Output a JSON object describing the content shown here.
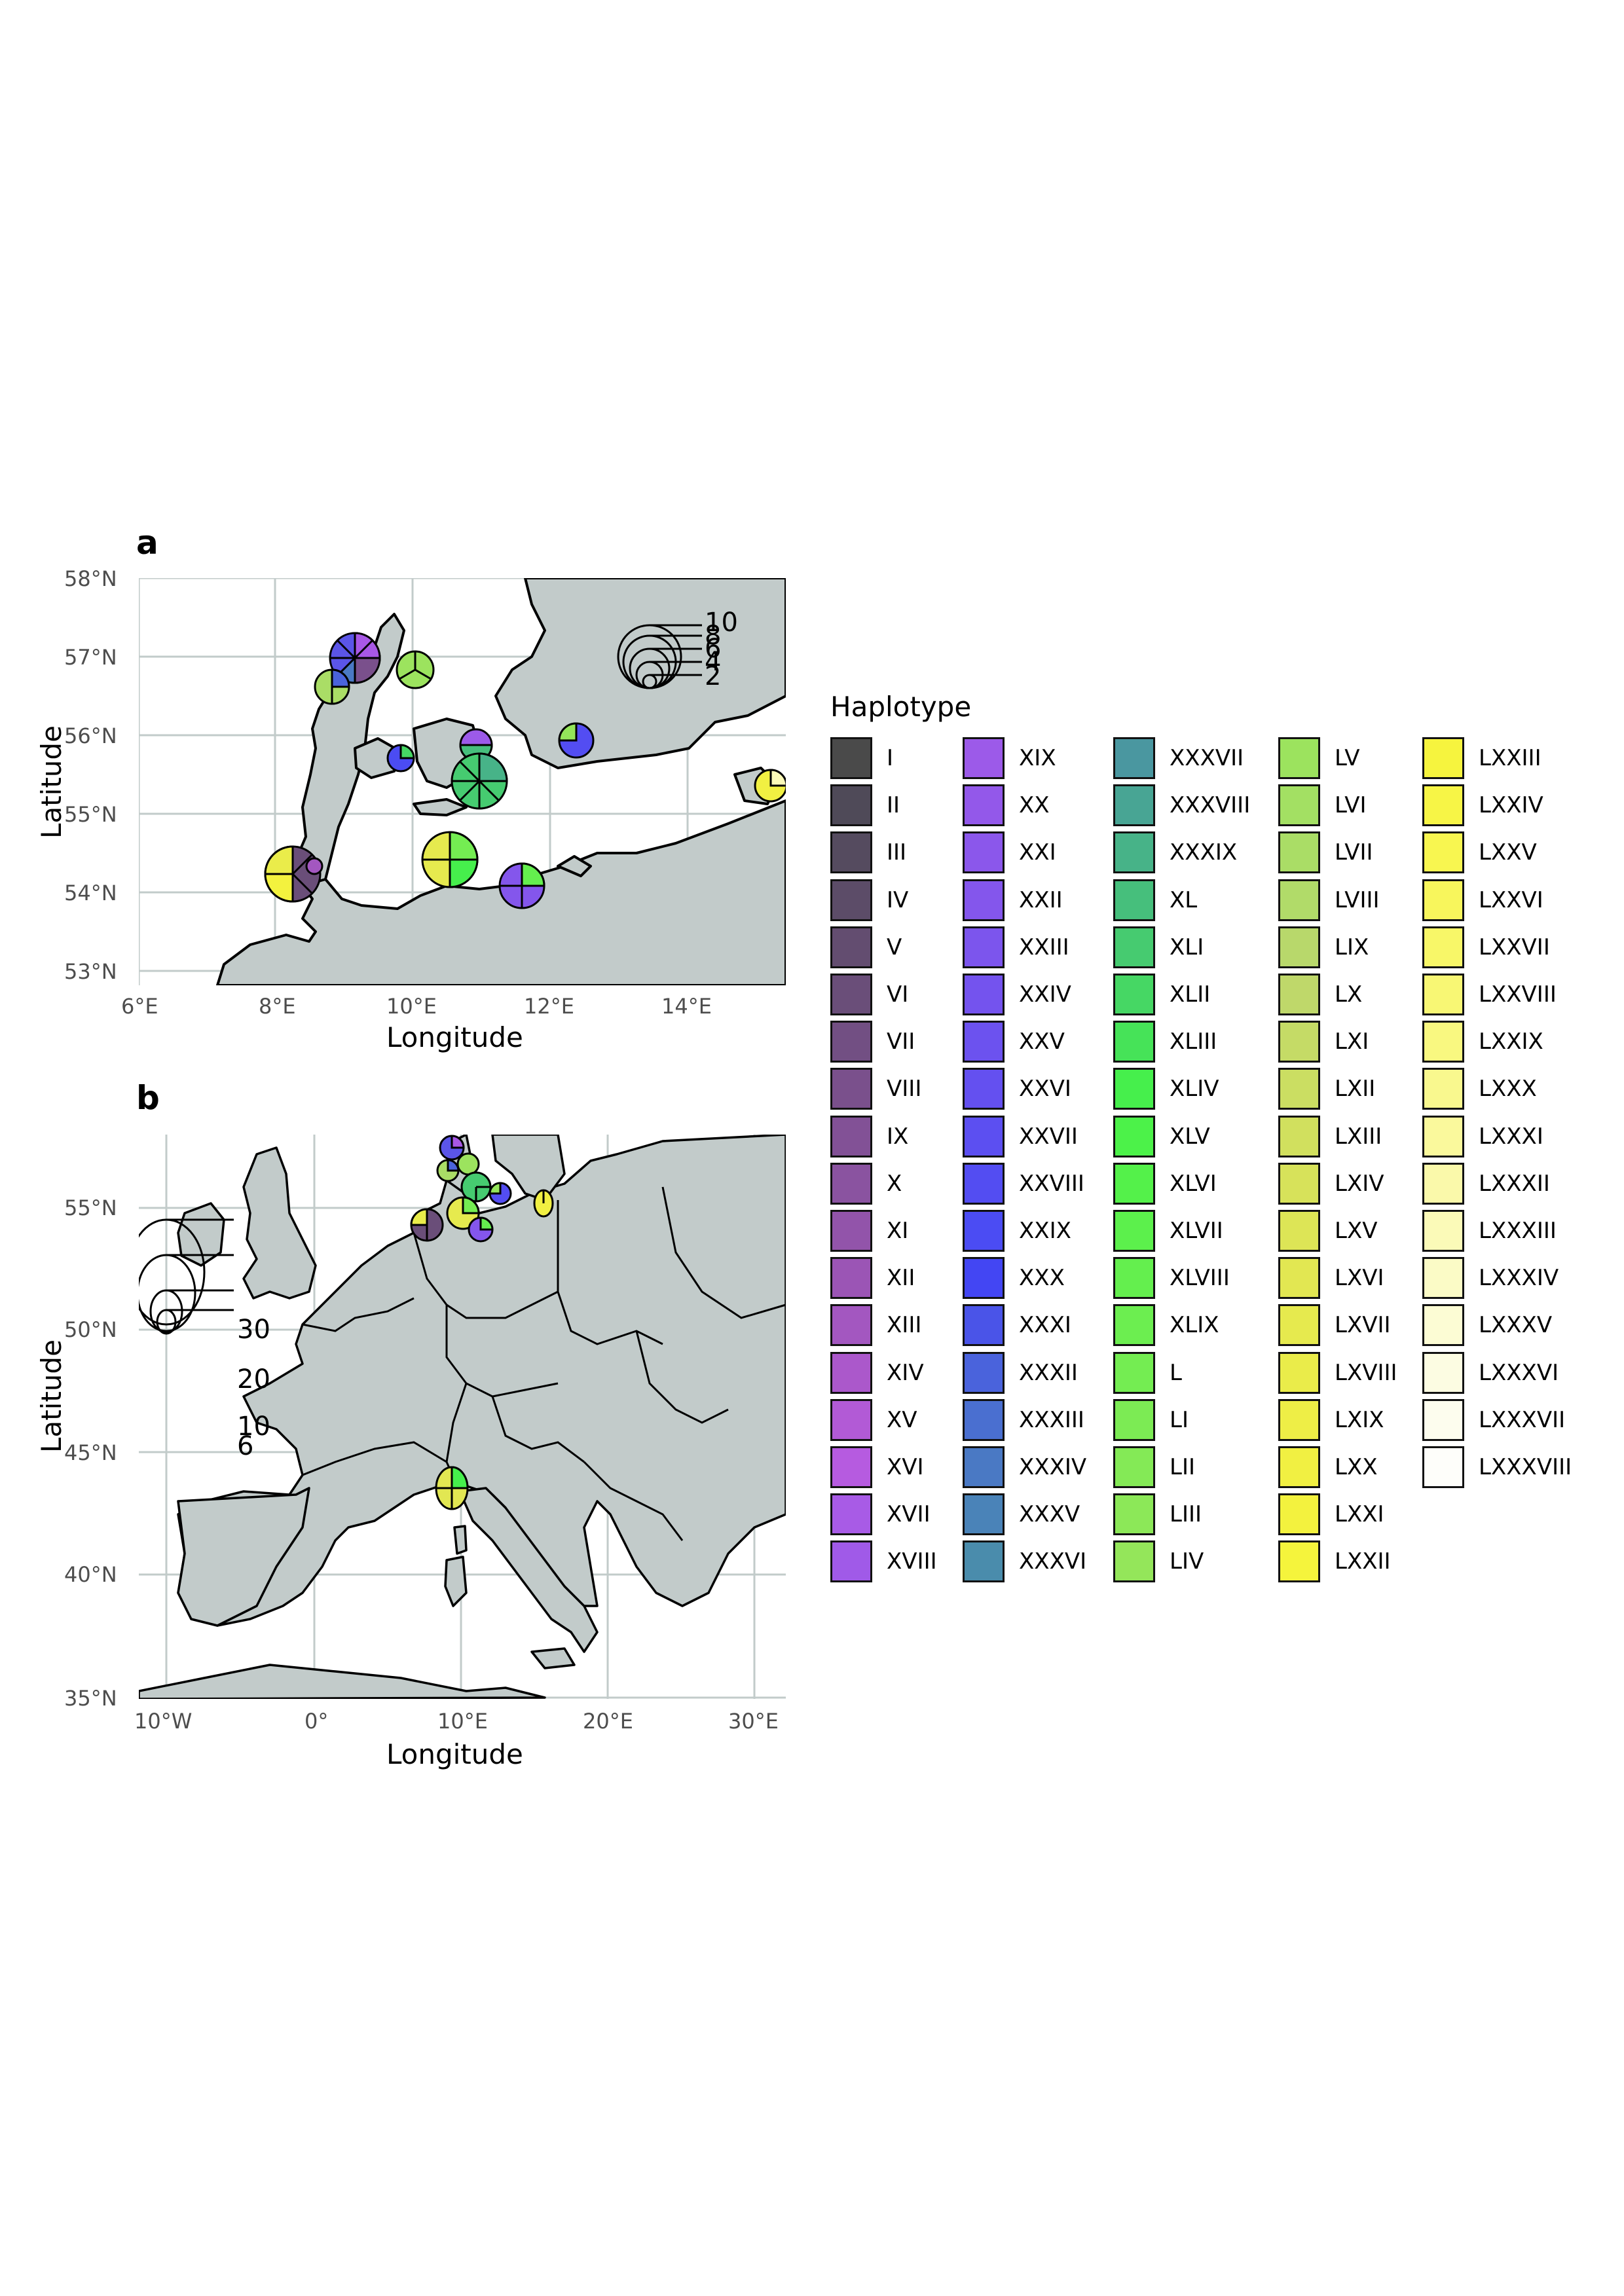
{
  "panels": {
    "a": {
      "letter": "a",
      "x_ticks": [
        "6°E",
        "8°E",
        "10°E",
        "12°E",
        "14°E"
      ],
      "y_ticks": [
        "58°N",
        "57°N",
        "56°N",
        "55°N",
        "54°N",
        "53°N"
      ],
      "xlabel": "Longitude",
      "ylabel": "Latitude",
      "size_legend": [
        "10",
        "8",
        "6",
        "4",
        "2"
      ]
    },
    "b": {
      "letter": "b",
      "x_ticks": [
        "10°W",
        "0°",
        "10°E",
        "20°E",
        "30°E"
      ],
      "y_ticks": [
        "55°N",
        "50°N",
        "45°N",
        "40°N",
        "35°N"
      ],
      "xlabel": "Longitude",
      "ylabel": "Latitude",
      "size_legend": [
        "30",
        "20",
        "10",
        "6"
      ]
    }
  },
  "legend": {
    "title": "Haplotype",
    "items": [
      {
        "label": "I",
        "color": "#4a4a4a"
      },
      {
        "label": "II",
        "color": "#4f4a58"
      },
      {
        "label": "III",
        "color": "#554b5f"
      },
      {
        "label": "IV",
        "color": "#5c4c68"
      },
      {
        "label": "V",
        "color": "#634d70"
      },
      {
        "label": "VI",
        "color": "#6a4e79"
      },
      {
        "label": "VII",
        "color": "#724f83"
      },
      {
        "label": "VIII",
        "color": "#7a508c"
      },
      {
        "label": "IX",
        "color": "#825196"
      },
      {
        "label": "X",
        "color": "#8a53a0"
      },
      {
        "label": "XI",
        "color": "#9254aa"
      },
      {
        "label": "XII",
        "color": "#9b55b5"
      },
      {
        "label": "XIII",
        "color": "#a357c0"
      },
      {
        "label": "XIV",
        "color": "#ab58cb"
      },
      {
        "label": "XV",
        "color": "#b25ad6"
      },
      {
        "label": "XVI",
        "color": "#b65be0"
      },
      {
        "label": "XVII",
        "color": "#a85be6"
      },
      {
        "label": "XVIII",
        "color": "#a05ae8"
      },
      {
        "label": "XIX",
        "color": "#9c5ae9"
      },
      {
        "label": "XX",
        "color": "#9358ea"
      },
      {
        "label": "XXI",
        "color": "#8b57eb"
      },
      {
        "label": "XXII",
        "color": "#8456ec"
      },
      {
        "label": "XXIII",
        "color": "#7c55ed"
      },
      {
        "label": "XXIV",
        "color": "#7453ee"
      },
      {
        "label": "XXV",
        "color": "#6c52ef"
      },
      {
        "label": "XXVI",
        "color": "#6450f0"
      },
      {
        "label": "XXVII",
        "color": "#5c4ff1"
      },
      {
        "label": "XXVIII",
        "color": "#534df2"
      },
      {
        "label": "XXIX",
        "color": "#4b4cf3"
      },
      {
        "label": "XXX",
        "color": "#4346f3"
      },
      {
        "label": "XXXI",
        "color": "#4a54e8"
      },
      {
        "label": "XXXII",
        "color": "#4a63dc"
      },
      {
        "label": "XXXIII",
        "color": "#4a6fd0"
      },
      {
        "label": "XXXIV",
        "color": "#4a79c4"
      },
      {
        "label": "XXXV",
        "color": "#4a83b8"
      },
      {
        "label": "XXXVI",
        "color": "#4a8cac"
      },
      {
        "label": "XXXVII",
        "color": "#4a97a0"
      },
      {
        "label": "XXXVIII",
        "color": "#48a594"
      },
      {
        "label": "XXXIX",
        "color": "#47b388"
      },
      {
        "label": "XL",
        "color": "#46bf7c"
      },
      {
        "label": "XLI",
        "color": "#46cb70"
      },
      {
        "label": "XLII",
        "color": "#46d764"
      },
      {
        "label": "XLIII",
        "color": "#46e358"
      },
      {
        "label": "XLIV",
        "color": "#46ef4c"
      },
      {
        "label": "XLV",
        "color": "#4cf249"
      },
      {
        "label": "XLVI",
        "color": "#54f14a"
      },
      {
        "label": "XLVII",
        "color": "#5cf04c"
      },
      {
        "label": "XLVIII",
        "color": "#64ef4e"
      },
      {
        "label": "XLIX",
        "color": "#6cee50"
      },
      {
        "label": "L",
        "color": "#74ed52"
      },
      {
        "label": "LI",
        "color": "#7ceb54"
      },
      {
        "label": "LII",
        "color": "#84ea56"
      },
      {
        "label": "LIII",
        "color": "#8ce858"
      },
      {
        "label": "LIV",
        "color": "#94e65a"
      },
      {
        "label": "LV",
        "color": "#9ce35e"
      },
      {
        "label": "LVI",
        "color": "#a3e063"
      },
      {
        "label": "LVII",
        "color": "#aadd66"
      },
      {
        "label": "LVIII",
        "color": "#b1db69"
      },
      {
        "label": "LIX",
        "color": "#b8d86b"
      },
      {
        "label": "LX",
        "color": "#bfd86a"
      },
      {
        "label": "LXI",
        "color": "#c5db66"
      },
      {
        "label": "LXII",
        "color": "#cbde62"
      },
      {
        "label": "LXIII",
        "color": "#d1e05e"
      },
      {
        "label": "LXIV",
        "color": "#d7e25a"
      },
      {
        "label": "LXV",
        "color": "#dde556"
      },
      {
        "label": "LXVI",
        "color": "#e2e752"
      },
      {
        "label": "LXVII",
        "color": "#e6ea4e"
      },
      {
        "label": "LXVIII",
        "color": "#eaec4a"
      },
      {
        "label": "LXIX",
        "color": "#eeee46"
      },
      {
        "label": "LXX",
        "color": "#f1f042"
      },
      {
        "label": "LXXI",
        "color": "#f3f23e"
      },
      {
        "label": "LXXII",
        "color": "#f5f43c"
      },
      {
        "label": "LXXIII",
        "color": "#f6f43e"
      },
      {
        "label": "LXXIV",
        "color": "#f7f546"
      },
      {
        "label": "LXXV",
        "color": "#f8f650"
      },
      {
        "label": "LXXVI",
        "color": "#f8f65c"
      },
      {
        "label": "LXXVII",
        "color": "#f8f768"
      },
      {
        "label": "LXXVIII",
        "color": "#f8f774"
      },
      {
        "label": "LXXIX",
        "color": "#f9f880"
      },
      {
        "label": "LXXX",
        "color": "#f9f88e"
      },
      {
        "label": "LXXXI",
        "color": "#faf99c"
      },
      {
        "label": "LXXXII",
        "color": "#faf9aa"
      },
      {
        "label": "LXXXIII",
        "color": "#fbfab8"
      },
      {
        "label": "LXXXIV",
        "color": "#fbfbc6"
      },
      {
        "label": "LXXXV",
        "color": "#fcfcd4"
      },
      {
        "label": "LXXXVI",
        "color": "#fcfce2"
      },
      {
        "label": "LXXXVII",
        "color": "#fdfdee"
      },
      {
        "label": "LXXXVIII",
        "color": "#fefefa"
      }
    ]
  },
  "colors": {
    "land": "#c2cbca",
    "sea": "#ffffff",
    "grid": "#c2cbca",
    "border": "#000000"
  }
}
